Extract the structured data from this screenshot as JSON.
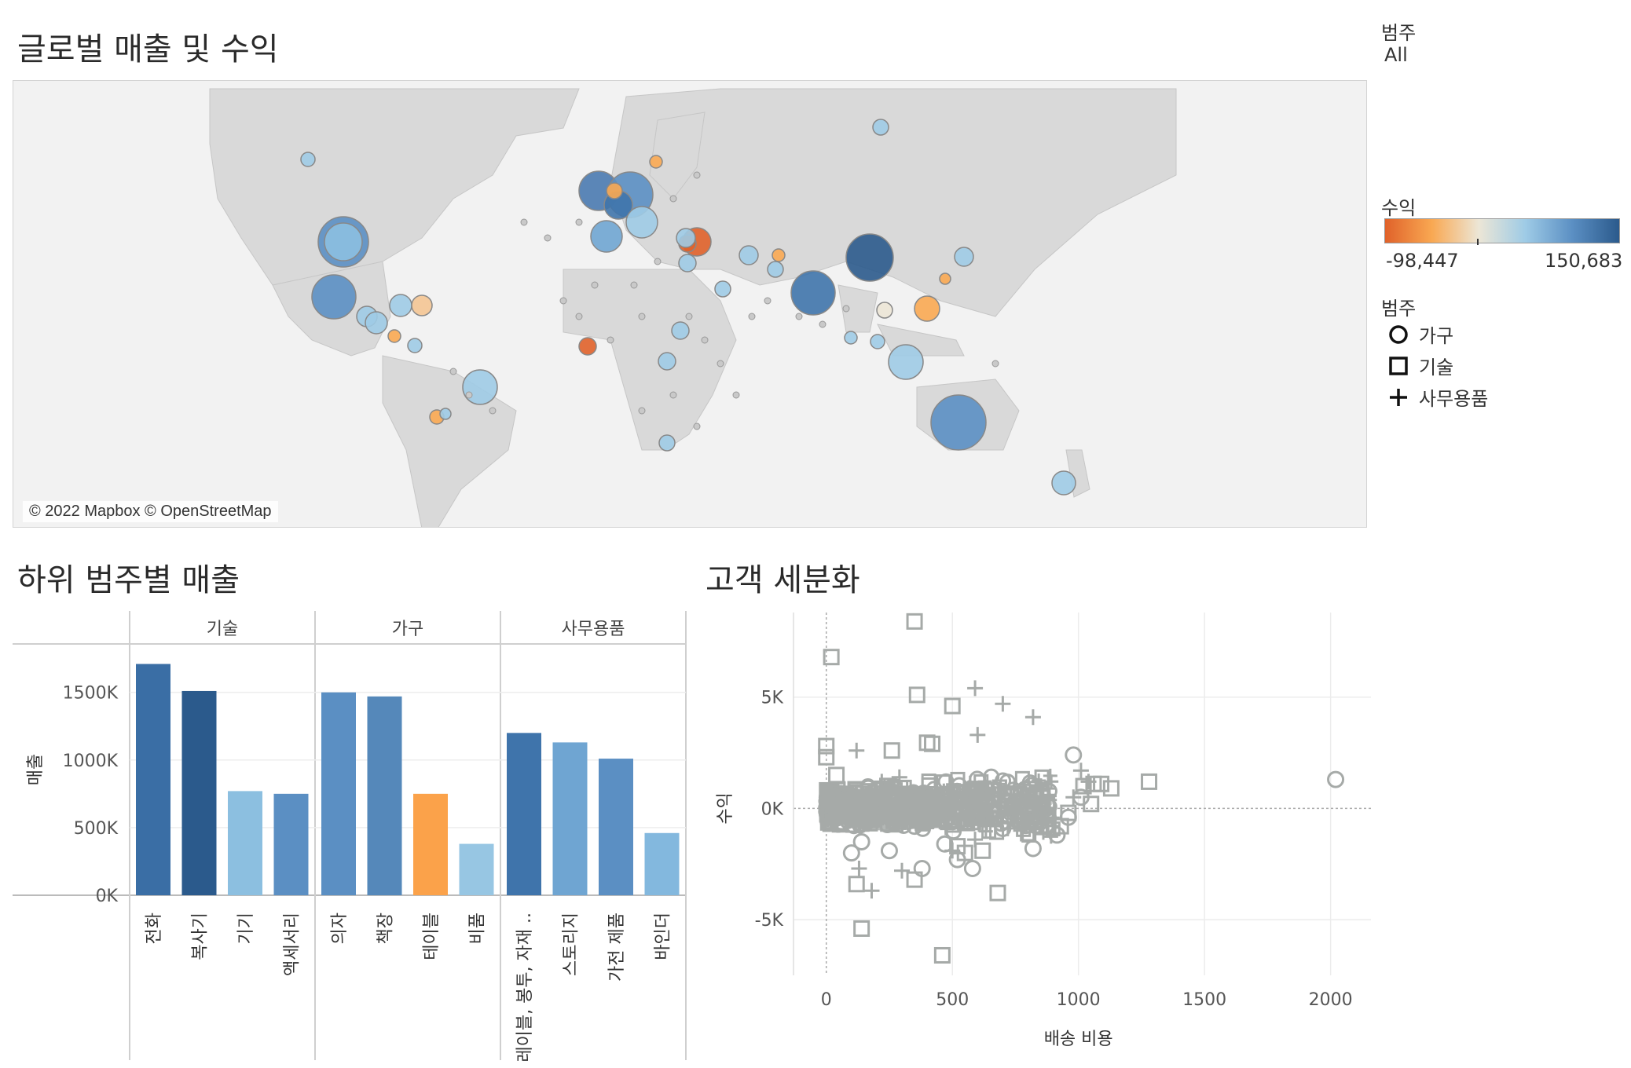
{
  "titles": {
    "map": "글로벌 매출 및 수익",
    "bar": "하위 범주별 매출",
    "scatter": "고객 세분화"
  },
  "filter": {
    "label": "범주",
    "value": "All"
  },
  "map": {
    "attribution": "© 2022 Mapbox © OpenStreetMap"
  },
  "legend": {
    "profit": {
      "title": "수익",
      "min_label": "-98,447",
      "max_label": "150,683",
      "colors": [
        "#e0622a",
        "#f9a852",
        "#ece6d6",
        "#9ecbe6",
        "#5b8fc3",
        "#2b5a8c"
      ]
    },
    "category": {
      "title": "범주",
      "items": [
        {
          "label": "가구",
          "shape": "circle-icon"
        },
        {
          "label": "기술",
          "shape": "square-icon"
        },
        {
          "label": "사무용품",
          "shape": "plus-icon"
        }
      ]
    }
  },
  "chart_data": [
    {
      "type": "bar",
      "title": "하위 범주별 매출",
      "ylabel": "매출",
      "ylim": [
        0,
        1800000
      ],
      "yticks": [
        0,
        500000,
        1000000,
        1500000
      ],
      "ytick_labels": [
        "0K",
        "500K",
        "1000K",
        "1500K"
      ],
      "groups": [
        {
          "name": "기술",
          "categories": [
            "전화",
            "복사기",
            "기기",
            "액세서리"
          ],
          "values": [
            1710000,
            1510000,
            770000,
            750000
          ],
          "colors": [
            "#3a6ea5",
            "#2b5a8c",
            "#8cbfe0",
            "#5b8fc3"
          ]
        },
        {
          "name": "가구",
          "categories": [
            "의자",
            "책장",
            "테이블",
            "비품"
          ],
          "values": [
            1500000,
            1470000,
            750000,
            380000
          ],
          "colors": [
            "#5b8fc3",
            "#5588ba",
            "#fba24a",
            "#97c6e3"
          ]
        },
        {
          "name": "사무용품",
          "categories": [
            "레이블, 봉투, 자재 ..",
            "스토리지",
            "가전 제품",
            "바인더"
          ],
          "values": [
            1200000,
            1130000,
            1010000,
            460000
          ],
          "colors": [
            "#3f74ab",
            "#6fa5d2",
            "#5b8fc3",
            "#83b8de"
          ]
        }
      ]
    },
    {
      "type": "scatter",
      "title": "고객 세분화",
      "xlabel": "배송 비용",
      "ylabel": "수익",
      "xlim": [
        -130,
        2160
      ],
      "ylim": [
        -7500,
        8800
      ],
      "xticks": [
        0,
        500,
        1000,
        1500,
        2000
      ],
      "xtick_labels": [
        "0",
        "500",
        "1000",
        "1500",
        "2000"
      ],
      "yticks": [
        -5000,
        0,
        5000
      ],
      "ytick_labels": [
        "-5K",
        "0K",
        "5K"
      ],
      "color": "#a6aaa8",
      "series": [
        {
          "name": "가구",
          "shape": "circle",
          "points": [
            [
              2020,
              1300
            ],
            [
              980,
              2400
            ],
            [
              1010,
              500
            ],
            [
              960,
              -400
            ],
            [
              915,
              -1200
            ],
            [
              880,
              -800
            ],
            [
              820,
              -1800
            ],
            [
              520,
              -2300
            ],
            [
              580,
              -2700
            ],
            [
              380,
              -2700
            ],
            [
              250,
              -1900
            ],
            [
              100,
              -2000
            ],
            [
              140,
              -1500
            ],
            [
              60,
              -600
            ],
            [
              700,
              -900
            ],
            [
              750,
              300
            ],
            [
              430,
              -300
            ],
            [
              240,
              200
            ],
            [
              640,
              800
            ],
            [
              120,
              700
            ],
            [
              350,
              -800
            ],
            [
              470,
              -1600
            ]
          ]
        },
        {
          "name": "기술",
          "shape": "square",
          "points": [
            [
              350,
              8400
            ],
            [
              20,
              6800
            ],
            [
              360,
              5100
            ],
            [
              500,
              4600
            ],
            [
              400,
              2950
            ],
            [
              420,
              2900
            ],
            [
              260,
              2600
            ],
            [
              0,
              2800
            ],
            [
              0,
              2300
            ],
            [
              40,
              1500
            ],
            [
              1060,
              1100
            ],
            [
              1130,
              900
            ],
            [
              1280,
              1200
            ],
            [
              1020,
              1000
            ],
            [
              1090,
              1100
            ],
            [
              1050,
              200
            ],
            [
              880,
              -300
            ],
            [
              960,
              -200
            ],
            [
              930,
              -800
            ],
            [
              620,
              -1900
            ],
            [
              680,
              -3800
            ],
            [
              520,
              -1700
            ],
            [
              550,
              -2000
            ],
            [
              140,
              -5400
            ],
            [
              460,
              -6600
            ],
            [
              120,
              -3400
            ],
            [
              350,
              -3200
            ],
            [
              550,
              -600
            ],
            [
              800,
              -100
            ],
            [
              160,
              400
            ],
            [
              230,
              -300
            ]
          ]
        },
        {
          "name": "사무용품",
          "shape": "plus",
          "points": [
            [
              590,
              5400
            ],
            [
              700,
              4700
            ],
            [
              820,
              4100
            ],
            [
              600,
              3300
            ],
            [
              1010,
              1700
            ],
            [
              1040,
              1200
            ],
            [
              640,
              700
            ],
            [
              860,
              -300
            ],
            [
              980,
              500
            ],
            [
              180,
              -3700
            ],
            [
              130,
              -2700
            ],
            [
              300,
              -2800
            ],
            [
              500,
              -1900
            ],
            [
              590,
              -1400
            ],
            [
              720,
              -900
            ],
            [
              220,
              1200
            ],
            [
              120,
              2600
            ],
            [
              540,
              200
            ],
            [
              400,
              -100
            ],
            [
              290,
              1400
            ]
          ]
        }
      ]
    }
  ]
}
